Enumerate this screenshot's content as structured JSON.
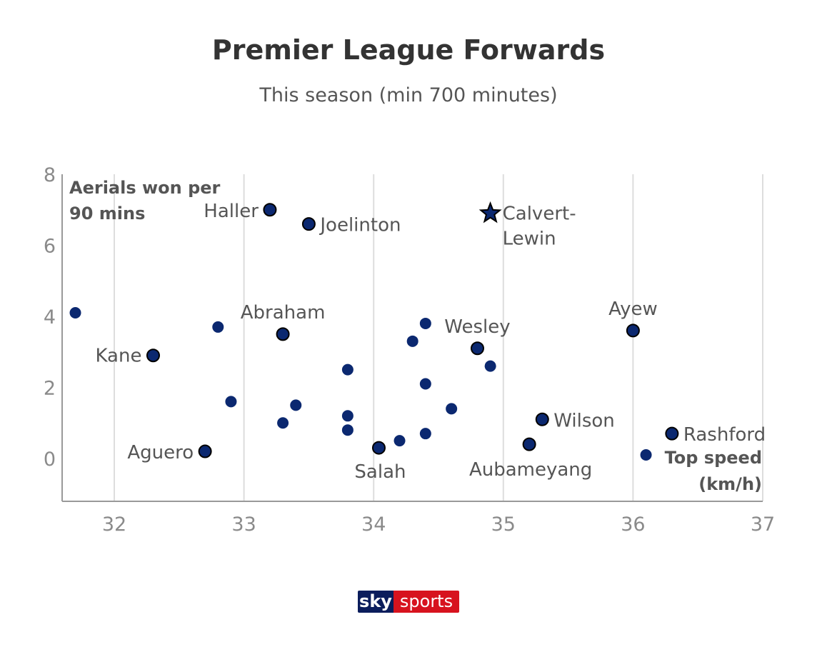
{
  "title": "Premier League Forwards",
  "subtitle": "This season (min 700 minutes)",
  "brand": {
    "sky": "sky",
    "sports": "sports"
  },
  "colors": {
    "point": "#0b2870",
    "grid": "#dddddd",
    "axis": "#999999",
    "label": "#555555"
  },
  "chart_data": {
    "type": "scatter",
    "title": "Premier League Forwards",
    "subtitle": "This season (min 700 minutes)",
    "xlabel": "Top speed (km/h)",
    "ylabel": "Aerials won per 90 mins",
    "xlim": [
      31.6,
      37
    ],
    "ylim": [
      -1.2,
      8
    ],
    "xticks": [
      32,
      33,
      34,
      35,
      36,
      37
    ],
    "yticks": [
      0,
      2,
      4,
      6,
      8
    ],
    "grid": "vertical",
    "points": [
      {
        "x": 31.7,
        "y": 4.1,
        "label": ""
      },
      {
        "x": 32.3,
        "y": 2.9,
        "label": "Kane"
      },
      {
        "x": 32.7,
        "y": 0.2,
        "label": "Aguero"
      },
      {
        "x": 32.8,
        "y": 3.7,
        "label": ""
      },
      {
        "x": 32.9,
        "y": 1.6,
        "label": ""
      },
      {
        "x": 33.2,
        "y": 7.0,
        "label": "Haller"
      },
      {
        "x": 33.3,
        "y": 3.5,
        "label": "Abraham"
      },
      {
        "x": 33.3,
        "y": 1.0,
        "label": ""
      },
      {
        "x": 33.4,
        "y": 1.5,
        "label": ""
      },
      {
        "x": 33.5,
        "y": 6.6,
        "label": "Joelinton"
      },
      {
        "x": 33.8,
        "y": 2.5,
        "label": ""
      },
      {
        "x": 33.8,
        "y": 1.2,
        "label": ""
      },
      {
        "x": 33.8,
        "y": 0.8,
        "label": ""
      },
      {
        "x": 34.04,
        "y": 0.3,
        "label": "Salah"
      },
      {
        "x": 34.2,
        "y": 0.5,
        "label": ""
      },
      {
        "x": 34.3,
        "y": 3.3,
        "label": ""
      },
      {
        "x": 34.4,
        "y": 3.8,
        "label": ""
      },
      {
        "x": 34.4,
        "y": 2.1,
        "label": ""
      },
      {
        "x": 34.4,
        "y": 0.7,
        "label": ""
      },
      {
        "x": 34.6,
        "y": 1.4,
        "label": ""
      },
      {
        "x": 34.8,
        "y": 3.1,
        "label": "Wesley"
      },
      {
        "x": 34.9,
        "y": 2.6,
        "label": ""
      },
      {
        "x": 34.9,
        "y": 6.9,
        "label": "Calvert-Lewin",
        "highlight": true
      },
      {
        "x": 35.2,
        "y": 0.4,
        "label": "Aubameyang"
      },
      {
        "x": 35.3,
        "y": 1.1,
        "label": "Wilson"
      },
      {
        "x": 36.0,
        "y": 3.6,
        "label": "Ayew"
      },
      {
        "x": 36.1,
        "y": 0.1,
        "label": ""
      },
      {
        "x": 36.3,
        "y": 0.7,
        "label": "Rashford"
      }
    ]
  }
}
